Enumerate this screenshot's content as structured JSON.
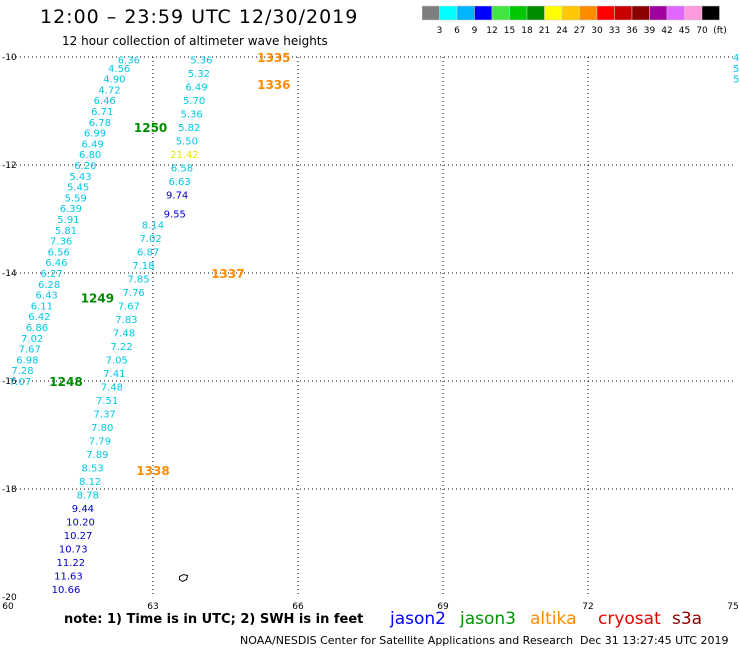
{
  "header": {
    "title": "12:00 – 23:59 UTC 12/30/2019",
    "subtitle": "12 hour collection of altimeter wave heights"
  },
  "scale": {
    "unit": "(ft)",
    "labels": [
      "3",
      "6",
      "9",
      "12",
      "15",
      "18",
      "21",
      "24",
      "27",
      "30",
      "33",
      "36",
      "39",
      "42",
      "45",
      "70"
    ],
    "colors": [
      "#7f7f7f",
      "#00ffff",
      "#00b4ff",
      "#0000ff",
      "#43e543",
      "#00c800",
      "#008c00",
      "#ffff00",
      "#ffc800",
      "#ff8c00",
      "#ff0000",
      "#c80000",
      "#8b0000",
      "#a000a0",
      "#e066ff",
      "#ff9adc",
      "#000000"
    ]
  },
  "axes": {
    "x_ticks": [
      "60",
      "63",
      "66",
      "69",
      "72",
      "75"
    ],
    "y_ticks": [
      "-10",
      "-12",
      "-14",
      "-16",
      "-18",
      "-20"
    ]
  },
  "swh_colors": {
    "cyan": "#00c8e6",
    "blue": "#0000c8",
    "yellow": "#e6e600"
  },
  "tracks": [
    {
      "name": "track-left",
      "points": [
        {
          "lon": 62.5,
          "lat": -10.05,
          "v": "6.36",
          "c": "cyan"
        },
        {
          "lon": 62.3,
          "lat": -10.2,
          "v": "4.56",
          "c": "cyan"
        },
        {
          "lon": 62.2,
          "lat": -10.4,
          "v": "4.90",
          "c": "cyan"
        },
        {
          "lon": 62.1,
          "lat": -10.6,
          "v": "4.72",
          "c": "cyan"
        },
        {
          "lon": 62.0,
          "lat": -10.8,
          "v": "6.46",
          "c": "cyan"
        },
        {
          "lon": 61.95,
          "lat": -11.0,
          "v": "6.71",
          "c": "cyan"
        },
        {
          "lon": 61.9,
          "lat": -11.2,
          "v": "6.78",
          "c": "cyan"
        },
        {
          "lon": 61.8,
          "lat": -11.4,
          "v": "6.99",
          "c": "cyan"
        },
        {
          "lon": 61.75,
          "lat": -11.6,
          "v": "6.49",
          "c": "cyan"
        },
        {
          "lon": 61.7,
          "lat": -11.8,
          "v": "6.80",
          "c": "cyan"
        },
        {
          "lon": 61.6,
          "lat": -12.0,
          "v": "6.20",
          "c": "cyan"
        },
        {
          "lon": 61.5,
          "lat": -12.2,
          "v": "5.43",
          "c": "cyan"
        },
        {
          "lon": 61.45,
          "lat": -12.4,
          "v": "5.45",
          "c": "cyan"
        },
        {
          "lon": 61.4,
          "lat": -12.6,
          "v": "5.59",
          "c": "cyan"
        },
        {
          "lon": 61.3,
          "lat": -12.8,
          "v": "6.39",
          "c": "cyan"
        },
        {
          "lon": 61.25,
          "lat": -13.0,
          "v": "5.91",
          "c": "cyan"
        },
        {
          "lon": 61.2,
          "lat": -13.2,
          "v": "5.81",
          "c": "cyan"
        },
        {
          "lon": 61.1,
          "lat": -13.4,
          "v": "7.36",
          "c": "cyan"
        },
        {
          "lon": 61.05,
          "lat": -13.6,
          "v": "6.56",
          "c": "cyan"
        },
        {
          "lon": 61.0,
          "lat": -13.8,
          "v": "6.46",
          "c": "cyan"
        },
        {
          "lon": 60.9,
          "lat": -14.0,
          "v": "6.27",
          "c": "cyan"
        },
        {
          "lon": 60.85,
          "lat": -14.2,
          "v": "6.28",
          "c": "cyan"
        },
        {
          "lon": 60.8,
          "lat": -14.4,
          "v": "6.43",
          "c": "cyan"
        },
        {
          "lon": 60.7,
          "lat": -14.6,
          "v": "6.11",
          "c": "cyan"
        },
        {
          "lon": 60.65,
          "lat": -14.8,
          "v": "6.42",
          "c": "cyan"
        },
        {
          "lon": 60.6,
          "lat": -15.0,
          "v": "6.86",
          "c": "cyan"
        },
        {
          "lon": 60.5,
          "lat": -15.2,
          "v": "7.02",
          "c": "cyan"
        },
        {
          "lon": 60.45,
          "lat": -15.4,
          "v": "7.67",
          "c": "cyan"
        },
        {
          "lon": 60.4,
          "lat": -15.6,
          "v": "6.98",
          "c": "cyan"
        },
        {
          "lon": 60.3,
          "lat": -15.8,
          "v": "7.28",
          "c": "cyan"
        },
        {
          "lon": 60.25,
          "lat": -16.0,
          "v": "7.07",
          "c": "cyan"
        }
      ]
    },
    {
      "name": "track-middle",
      "points": [
        {
          "lon": 63.0,
          "lat": -13.1,
          "v": "8.14",
          "c": "cyan"
        },
        {
          "lon": 62.95,
          "lat": -13.35,
          "v": "7.02",
          "c": "cyan"
        },
        {
          "lon": 62.9,
          "lat": -13.6,
          "v": "6.87",
          "c": "cyan"
        },
        {
          "lon": 62.8,
          "lat": -13.85,
          "v": "7.18",
          "c": "cyan"
        },
        {
          "lon": 62.7,
          "lat": -14.1,
          "v": "7.85",
          "c": "cyan"
        },
        {
          "lon": 62.6,
          "lat": -14.35,
          "v": "7.76",
          "c": "cyan"
        },
        {
          "lon": 62.5,
          "lat": -14.6,
          "v": "7.67",
          "c": "cyan"
        },
        {
          "lon": 62.45,
          "lat": -14.85,
          "v": "7.83",
          "c": "cyan"
        },
        {
          "lon": 62.4,
          "lat": -15.1,
          "v": "7.48",
          "c": "cyan"
        },
        {
          "lon": 62.35,
          "lat": -15.35,
          "v": "7.22",
          "c": "cyan"
        },
        {
          "lon": 62.25,
          "lat": -15.6,
          "v": "7.05",
          "c": "cyan"
        },
        {
          "lon": 62.2,
          "lat": -15.85,
          "v": "7.41",
          "c": "cyan"
        },
        {
          "lon": 62.15,
          "lat": -16.1,
          "v": "7.48",
          "c": "cyan"
        },
        {
          "lon": 62.05,
          "lat": -16.35,
          "v": "7.51",
          "c": "cyan"
        },
        {
          "lon": 62.0,
          "lat": -16.6,
          "v": "7.37",
          "c": "cyan"
        },
        {
          "lon": 61.95,
          "lat": -16.85,
          "v": "7.80",
          "c": "cyan"
        },
        {
          "lon": 61.9,
          "lat": -17.1,
          "v": "7.79",
          "c": "cyan"
        },
        {
          "lon": 61.85,
          "lat": -17.35,
          "v": "7.89",
          "c": "cyan"
        },
        {
          "lon": 61.75,
          "lat": -17.6,
          "v": "8.53",
          "c": "cyan"
        },
        {
          "lon": 61.7,
          "lat": -17.85,
          "v": "8.12",
          "c": "cyan"
        },
        {
          "lon": 61.65,
          "lat": -18.1,
          "v": "8.78",
          "c": "cyan"
        },
        {
          "lon": 61.55,
          "lat": -18.35,
          "v": "9.44",
          "c": "blue"
        },
        {
          "lon": 61.5,
          "lat": -18.6,
          "v": "10.20",
          "c": "blue"
        },
        {
          "lon": 61.45,
          "lat": -18.85,
          "v": "10.27",
          "c": "blue"
        },
        {
          "lon": 61.35,
          "lat": -19.1,
          "v": "10.73",
          "c": "blue"
        },
        {
          "lon": 61.3,
          "lat": -19.35,
          "v": "11.22",
          "c": "blue"
        },
        {
          "lon": 61.25,
          "lat": -19.6,
          "v": "11.63",
          "c": "blue"
        },
        {
          "lon": 61.2,
          "lat": -19.85,
          "v": "10.66",
          "c": "blue"
        }
      ]
    },
    {
      "name": "track-right",
      "points": [
        {
          "lon": 64.0,
          "lat": -10.05,
          "v": "5.36",
          "c": "cyan"
        },
        {
          "lon": 63.95,
          "lat": -10.3,
          "v": "5.32",
          "c": "cyan"
        },
        {
          "lon": 63.9,
          "lat": -10.55,
          "v": "6.49",
          "c": "cyan"
        },
        {
          "lon": 63.85,
          "lat": -10.8,
          "v": "5.70",
          "c": "cyan"
        },
        {
          "lon": 63.8,
          "lat": -11.05,
          "v": "5.36",
          "c": "cyan"
        },
        {
          "lon": 63.75,
          "lat": -11.3,
          "v": "5.82",
          "c": "cyan"
        },
        {
          "lon": 63.7,
          "lat": -11.55,
          "v": "5.50",
          "c": "cyan"
        },
        {
          "lon": 63.65,
          "lat": -11.8,
          "v": "21.42",
          "c": "yellow"
        },
        {
          "lon": 63.6,
          "lat": -12.05,
          "v": "6.58",
          "c": "cyan"
        },
        {
          "lon": 63.55,
          "lat": -12.3,
          "v": "6.63",
          "c": "cyan"
        },
        {
          "lon": 63.5,
          "lat": -12.55,
          "v": "9.74",
          "c": "blue"
        },
        {
          "lon": 63.45,
          "lat": -12.9,
          "v": "9.55",
          "c": "blue"
        }
      ]
    },
    {
      "name": "track-far-right",
      "points": [
        {
          "lon": 75.1,
          "lat": -10.0,
          "v": "4.",
          "c": "cyan"
        },
        {
          "lon": 75.1,
          "lat": -10.2,
          "v": "5.",
          "c": "cyan"
        },
        {
          "lon": 75.1,
          "lat": -10.4,
          "v": "5.",
          "c": "cyan"
        }
      ]
    }
  ],
  "time_labels": [
    {
      "text": "1335",
      "lon": 65.5,
      "lat": -10.0,
      "color": "#ff8c00"
    },
    {
      "text": "1336",
      "lon": 65.5,
      "lat": -10.5,
      "color": "#ff8c00"
    },
    {
      "text": "1337",
      "lon": 64.55,
      "lat": -14.0,
      "color": "#ff8c00"
    },
    {
      "text": "1338",
      "lon": 63.0,
      "lat": -17.65,
      "color": "#ff8c00"
    },
    {
      "text": "1250",
      "lon": 62.95,
      "lat": -11.3,
      "color": "#008c00"
    },
    {
      "text": "1249",
      "lon": 61.85,
      "lat": -14.45,
      "color": "#008c00"
    },
    {
      "text": "1248",
      "lon": 61.2,
      "lat": -16.0,
      "color": "#008c00"
    }
  ],
  "footer": {
    "note": "note:  1) Time is in UTC; 2) SWH is in feet",
    "satellites": [
      {
        "name": "jason2",
        "color": "#0000ff"
      },
      {
        "name": "jason3",
        "color": "#009600"
      },
      {
        "name": "altika",
        "color": "#ff8c00"
      },
      {
        "name": "cryosat",
        "color": "#e60000"
      },
      {
        "name": "s3a",
        "color": "#8b0000"
      }
    ],
    "credit": "NOAA/NESDIS Center for Satellite Applications and Research",
    "timestamp": "Dec 31 13:27:45 UTC 2019"
  }
}
